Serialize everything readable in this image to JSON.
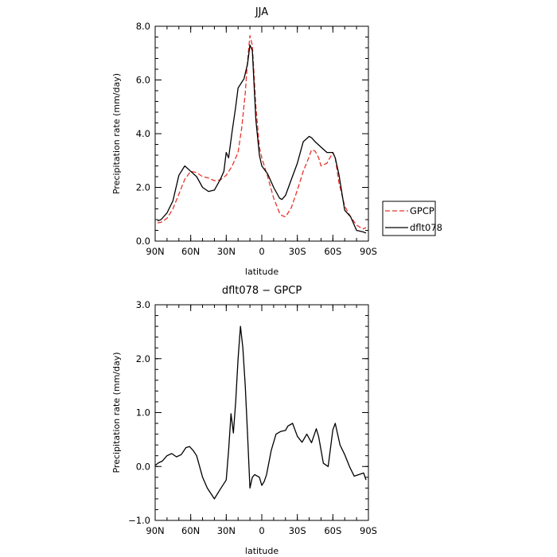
{
  "chart_data": [
    {
      "type": "line",
      "title": "JJA",
      "xlabel": "latitude",
      "ylabel": "Precipitation rate  (mm/day)",
      "xlim": [
        90,
        -90
      ],
      "ylim": [
        0,
        8
      ],
      "x_tick_values": [
        90,
        60,
        30,
        0,
        -30,
        -60,
        -90
      ],
      "x_tick_labels": [
        "90N",
        "60N",
        "30N",
        "0",
        "30S",
        "60S",
        "90S"
      ],
      "y_tick_values": [
        0,
        2,
        4,
        6,
        8
      ],
      "y_tick_labels": [
        "0.0",
        "2.0",
        "4.0",
        "6.0",
        "8.0"
      ],
      "legend": {
        "placement": "right",
        "entries": [
          "GPCP",
          "dflt078"
        ]
      },
      "series": [
        {
          "name": "GPCP",
          "color": "#e8332b",
          "style": "dashed",
          "x": [
            88,
            85,
            80,
            75,
            70,
            65,
            60,
            55,
            50,
            45,
            40,
            35,
            30,
            25,
            20,
            17,
            14,
            12,
            10,
            8,
            5,
            2,
            0,
            -5,
            -10,
            -15,
            -17,
            -20,
            -25,
            -30,
            -35,
            -40,
            -42,
            -45,
            -48,
            -50,
            -55,
            -60,
            -62,
            -65,
            -70,
            -75,
            -80,
            -85,
            -88
          ],
          "y": [
            0.68,
            0.7,
            0.85,
            1.2,
            1.75,
            2.3,
            2.6,
            2.55,
            2.4,
            2.35,
            2.25,
            2.28,
            2.45,
            2.8,
            3.3,
            4.2,
            5.5,
            6.7,
            7.65,
            7.3,
            5.0,
            3.5,
            3.1,
            2.4,
            1.6,
            1.05,
            0.95,
            0.9,
            1.25,
            1.9,
            2.6,
            3.15,
            3.4,
            3.35,
            3.1,
            2.8,
            2.9,
            3.3,
            3.1,
            2.2,
            1.3,
            0.9,
            0.6,
            0.45,
            0.5
          ]
        },
        {
          "name": "dflt078",
          "color": "#000000",
          "style": "solid",
          "x": [
            88,
            85,
            80,
            75,
            70,
            65,
            60,
            55,
            50,
            45,
            40,
            35,
            32,
            30,
            28,
            25,
            22,
            20,
            15,
            12,
            10,
            8,
            5,
            2,
            0,
            -5,
            -10,
            -15,
            -17,
            -20,
            -25,
            -30,
            -35,
            -40,
            -42,
            -45,
            -50,
            -55,
            -60,
            -62,
            -65,
            -70,
            -75,
            -80,
            -85,
            -88
          ],
          "y": [
            0.75,
            0.8,
            1.05,
            1.5,
            2.45,
            2.8,
            2.6,
            2.4,
            2.0,
            1.85,
            1.9,
            2.3,
            2.6,
            3.3,
            3.1,
            4.1,
            5.0,
            5.7,
            6.05,
            6.6,
            7.3,
            7.1,
            4.5,
            3.2,
            2.8,
            2.5,
            2.0,
            1.6,
            1.55,
            1.7,
            2.3,
            2.9,
            3.7,
            3.9,
            3.85,
            3.7,
            3.5,
            3.3,
            3.3,
            3.1,
            2.5,
            1.15,
            0.9,
            0.4,
            0.35,
            0.3
          ]
        }
      ]
    },
    {
      "type": "line",
      "title": "dflt078  −  GPCP",
      "xlabel": "latitude",
      "ylabel": "Precipitation rate  (mm/day)",
      "xlim": [
        90,
        -90
      ],
      "ylim": [
        -1,
        3
      ],
      "x_tick_values": [
        90,
        60,
        30,
        0,
        -30,
        -60,
        -90
      ],
      "x_tick_labels": [
        "90N",
        "60N",
        "30N",
        "0",
        "30S",
        "60S",
        "90S"
      ],
      "y_tick_values": [
        -1,
        0,
        1,
        2,
        3
      ],
      "y_tick_labels": [
        "−1.0",
        "0.0",
        "1.0",
        "2.0",
        "3.0"
      ],
      "series": [
        {
          "color": "#000000",
          "style": "solid",
          "x": [
            90,
            87,
            84,
            80,
            76,
            72,
            68,
            64,
            61,
            58,
            55,
            50,
            46,
            40,
            35,
            30,
            28,
            26,
            24,
            22,
            20,
            18,
            16,
            14,
            12,
            10,
            8,
            6,
            2,
            0,
            -2,
            -4,
            -8,
            -12,
            -16,
            -20,
            -22,
            -26,
            -30,
            -34,
            -38,
            -42,
            -46,
            -48,
            -52,
            -56,
            -60,
            -62,
            -66,
            -70,
            -74,
            -78,
            -82,
            -86,
            -88
          ],
          "y": [
            0.02,
            0.07,
            0.1,
            0.2,
            0.24,
            0.18,
            0.22,
            0.35,
            0.37,
            0.3,
            0.2,
            -0.2,
            -0.4,
            -0.6,
            -0.42,
            -0.25,
            0.3,
            0.98,
            0.62,
            1.2,
            2.0,
            2.6,
            2.2,
            1.5,
            0.6,
            -0.4,
            -0.2,
            -0.15,
            -0.2,
            -0.35,
            -0.28,
            -0.15,
            0.3,
            0.6,
            0.65,
            0.67,
            0.75,
            0.8,
            0.56,
            0.45,
            0.6,
            0.44,
            0.7,
            0.55,
            0.06,
            0.0,
            0.68,
            0.8,
            0.4,
            0.22,
            0.0,
            -0.18,
            -0.15,
            -0.12,
            -0.25
          ]
        }
      ]
    }
  ]
}
